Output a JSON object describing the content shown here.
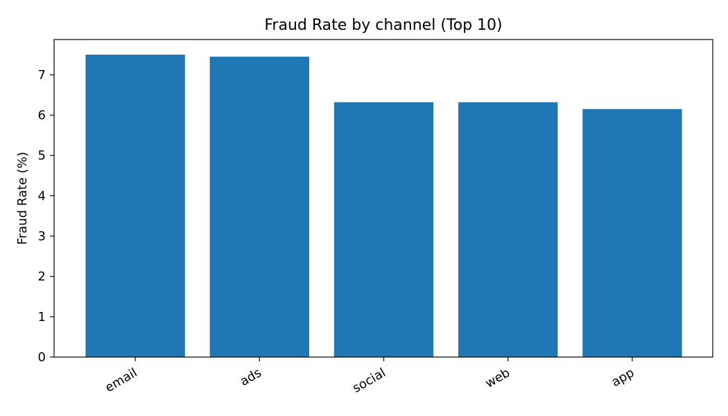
{
  "chart_data": {
    "type": "bar",
    "title": "Fraud Rate by channel (Top 10)",
    "xlabel": "",
    "ylabel": "Fraud Rate (%)",
    "categories": [
      "email",
      "ads",
      "social",
      "web",
      "app"
    ],
    "values": [
      7.5,
      7.45,
      6.32,
      6.32,
      6.15
    ],
    "ylim": [
      0,
      7.875
    ],
    "yticks": [
      0,
      1,
      2,
      3,
      4,
      5,
      6,
      7
    ],
    "grid": false,
    "legend": "none",
    "bar_color": "#1f77b4"
  }
}
